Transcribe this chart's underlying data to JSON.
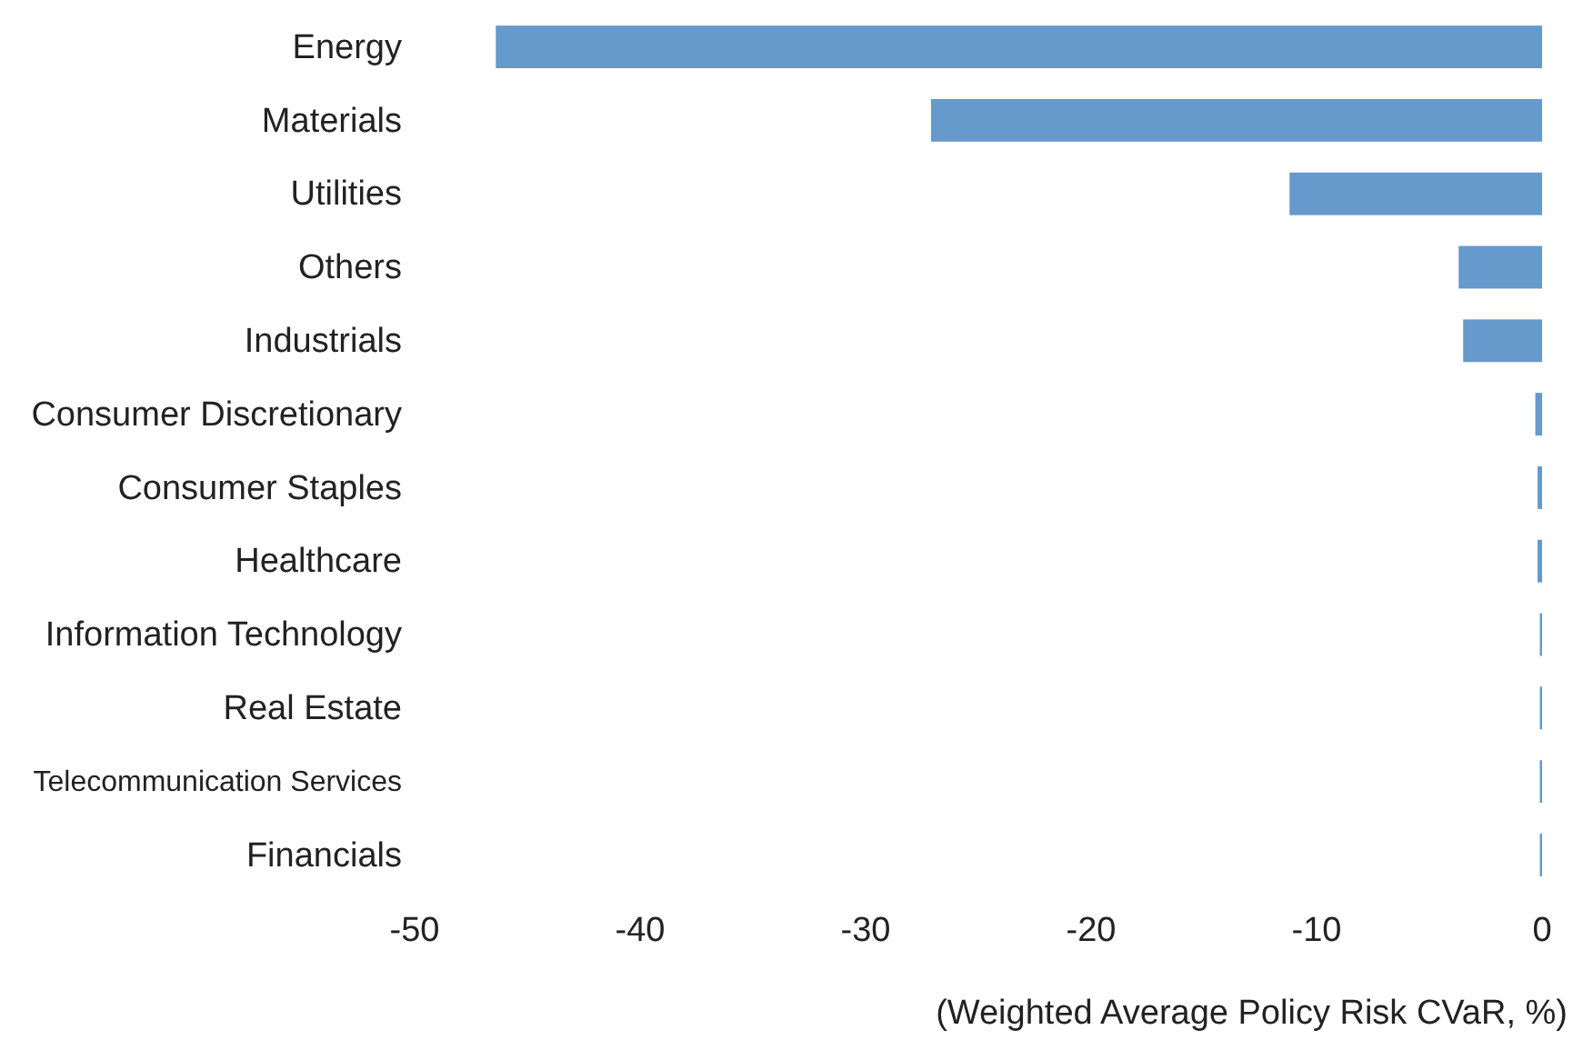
{
  "chart_data": {
    "type": "bar",
    "orientation": "horizontal",
    "xlabel": "(Weighted Average Policy Risk CVaR, %)",
    "categories": [
      "Energy",
      "Materials",
      "Utilities",
      "Others",
      "Industrials",
      "Consumer Discretionary",
      "Consumer Staples",
      "Healthcare",
      "Information Technology",
      "Real Estate",
      "Telecommunication Services",
      "Financials"
    ],
    "values": [
      -46.4,
      -27.1,
      -11.2,
      -3.7,
      -3.5,
      -0.3,
      -0.2,
      -0.2,
      -0.1,
      -0.1,
      -0.1,
      -0.1
    ],
    "color": "#6699cc",
    "xlim": [
      -50,
      0
    ],
    "xticks": [
      -50,
      -40,
      -30,
      -20,
      -10,
      0
    ],
    "grid": false
  }
}
